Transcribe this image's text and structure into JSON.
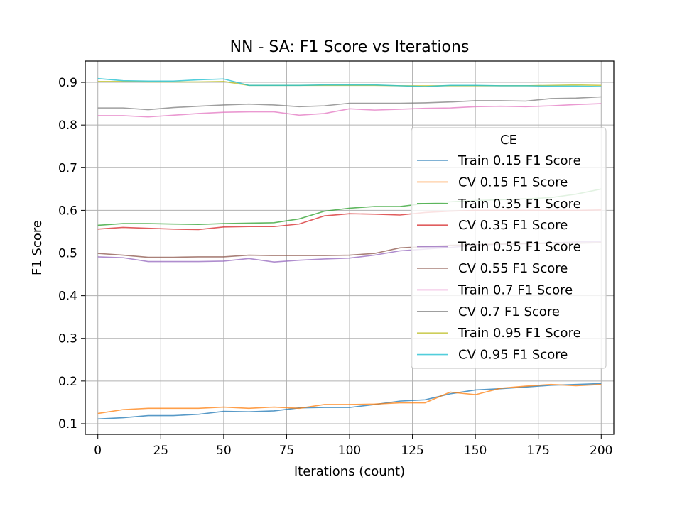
{
  "chart_data": {
    "type": "line",
    "title": "NN - SA: F1 Score vs Iterations",
    "xlabel": "Iterations (count)",
    "ylabel": "F1 Score",
    "xlim": [
      -5,
      205
    ],
    "ylim": [
      0.075,
      0.95
    ],
    "xticks": [
      0,
      25,
      50,
      75,
      100,
      125,
      150,
      175,
      200
    ],
    "yticks": [
      0.1,
      0.2,
      0.3,
      0.4,
      0.5,
      0.6,
      0.7,
      0.8,
      0.9
    ],
    "grid": true,
    "legend_title": "CE",
    "legend_position": "center-right",
    "x": [
      0,
      10,
      20,
      30,
      40,
      50,
      60,
      70,
      80,
      90,
      100,
      110,
      120,
      130,
      140,
      150,
      160,
      170,
      180,
      190,
      200
    ],
    "series": [
      {
        "name": "Train 0.15 F1 Score",
        "color": "#1f77b4",
        "values": [
          0.111,
          0.114,
          0.119,
          0.119,
          0.122,
          0.129,
          0.128,
          0.13,
          0.137,
          0.138,
          0.138,
          0.145,
          0.153,
          0.156,
          0.17,
          0.179,
          0.182,
          0.186,
          0.19,
          0.192,
          0.194
        ]
      },
      {
        "name": "CV 0.15 F1 Score",
        "color": "#ff7f0e",
        "values": [
          0.124,
          0.133,
          0.136,
          0.136,
          0.136,
          0.139,
          0.136,
          0.139,
          0.136,
          0.145,
          0.145,
          0.146,
          0.149,
          0.149,
          0.174,
          0.168,
          0.183,
          0.188,
          0.192,
          0.189,
          0.192
        ]
      },
      {
        "name": "Train 0.35 F1 Score",
        "color": "#2ca02c",
        "values": [
          0.565,
          0.569,
          0.569,
          0.568,
          0.567,
          0.569,
          0.57,
          0.571,
          0.58,
          0.598,
          0.605,
          0.609,
          0.609,
          0.616,
          0.62,
          0.623,
          0.625,
          0.627,
          0.63,
          0.638,
          0.65
        ]
      },
      {
        "name": "CV 0.35 F1 Score",
        "color": "#d62728",
        "values": [
          0.556,
          0.56,
          0.558,
          0.556,
          0.555,
          0.561,
          0.562,
          0.562,
          0.568,
          0.587,
          0.592,
          0.591,
          0.589,
          0.595,
          0.598,
          0.6,
          0.6,
          0.6,
          0.6,
          0.6,
          0.601
        ]
      },
      {
        "name": "Train 0.55 F1 Score",
        "color": "#9467bd",
        "values": [
          0.491,
          0.489,
          0.48,
          0.48,
          0.48,
          0.481,
          0.487,
          0.479,
          0.483,
          0.486,
          0.488,
          0.495,
          0.505,
          0.509,
          0.513,
          0.518,
          0.52,
          0.522,
          0.524,
          0.526,
          0.527
        ]
      },
      {
        "name": "CV 0.55 F1 Score",
        "color": "#8c564b",
        "values": [
          0.499,
          0.495,
          0.49,
          0.49,
          0.491,
          0.491,
          0.495,
          0.494,
          0.494,
          0.494,
          0.495,
          0.499,
          0.512,
          0.515,
          0.518,
          0.52,
          0.521,
          0.522,
          0.523,
          0.523,
          0.524
        ]
      },
      {
        "name": "Train 0.7 F1 Score",
        "color": "#e377c2",
        "values": [
          0.822,
          0.822,
          0.819,
          0.823,
          0.827,
          0.83,
          0.831,
          0.831,
          0.823,
          0.827,
          0.838,
          0.835,
          0.837,
          0.839,
          0.84,
          0.843,
          0.844,
          0.843,
          0.845,
          0.848,
          0.85
        ]
      },
      {
        "name": "CV 0.7 F1 Score",
        "color": "#7f7f7f",
        "values": [
          0.84,
          0.84,
          0.836,
          0.841,
          0.844,
          0.847,
          0.849,
          0.847,
          0.843,
          0.845,
          0.851,
          0.851,
          0.851,
          0.852,
          0.854,
          0.857,
          0.857,
          0.856,
          0.862,
          0.863,
          0.866
        ]
      },
      {
        "name": "Train 0.95 F1 Score",
        "color": "#bcbd22",
        "values": [
          0.902,
          0.902,
          0.901,
          0.901,
          0.901,
          0.902,
          0.893,
          0.893,
          0.893,
          0.893,
          0.893,
          0.893,
          0.892,
          0.892,
          0.892,
          0.892,
          0.892,
          0.892,
          0.893,
          0.894,
          0.893
        ]
      },
      {
        "name": "CV 0.95 F1 Score",
        "color": "#17becf",
        "values": [
          0.909,
          0.904,
          0.903,
          0.903,
          0.906,
          0.908,
          0.893,
          0.893,
          0.893,
          0.894,
          0.894,
          0.894,
          0.892,
          0.89,
          0.893,
          0.893,
          0.892,
          0.892,
          0.891,
          0.891,
          0.89
        ]
      }
    ]
  }
}
